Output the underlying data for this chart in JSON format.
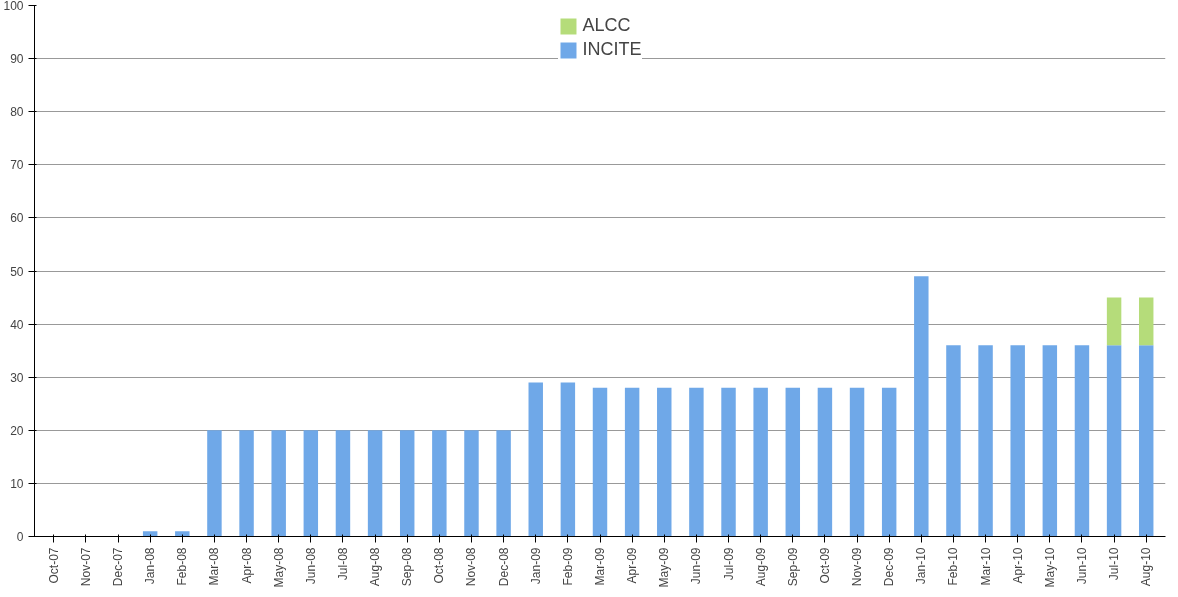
{
  "chart_data": {
    "type": "bar",
    "stacked": true,
    "categories": [
      "Oct-07",
      "Nov-07",
      "Dec-07",
      "Jan-08",
      "Feb-08",
      "Mar-08",
      "Apr-08",
      "May-08",
      "Jun-08",
      "Jul-08",
      "Aug-08",
      "Sep-08",
      "Oct-08",
      "Nov-08",
      "Dec-08",
      "Jan-09",
      "Feb-09",
      "Mar-09",
      "Apr-09",
      "May-09",
      "Jun-09",
      "Jul-09",
      "Aug-09",
      "Sep-09",
      "Oct-09",
      "Nov-09",
      "Dec-09",
      "Jan-10",
      "Feb-10",
      "Mar-10",
      "Apr-10",
      "May-10",
      "Jun-10",
      "Jul-10",
      "Aug-10"
    ],
    "series": [
      {
        "name": "INCITE",
        "color": "#6fa8e8",
        "values": [
          0,
          0,
          0,
          1,
          1,
          20,
          20,
          20,
          20,
          20,
          20,
          20,
          20,
          20,
          20,
          29,
          29,
          28,
          28,
          28,
          28,
          28,
          28,
          28,
          28,
          28,
          28,
          49,
          36,
          36,
          36,
          36,
          36,
          36,
          36
        ]
      },
      {
        "name": "ALCC",
        "color": "#b5dc7a",
        "values": [
          0,
          0,
          0,
          0,
          0,
          0,
          0,
          0,
          0,
          0,
          0,
          0,
          0,
          0,
          0,
          0,
          0,
          0,
          0,
          0,
          0,
          0,
          0,
          0,
          0,
          0,
          0,
          0,
          0,
          0,
          0,
          0,
          0,
          9,
          9
        ]
      }
    ],
    "ylim": [
      0,
      100
    ],
    "yticks": [
      0,
      10,
      20,
      30,
      40,
      50,
      60,
      70,
      80,
      90,
      100
    ],
    "grid": "y",
    "legend": "top"
  }
}
